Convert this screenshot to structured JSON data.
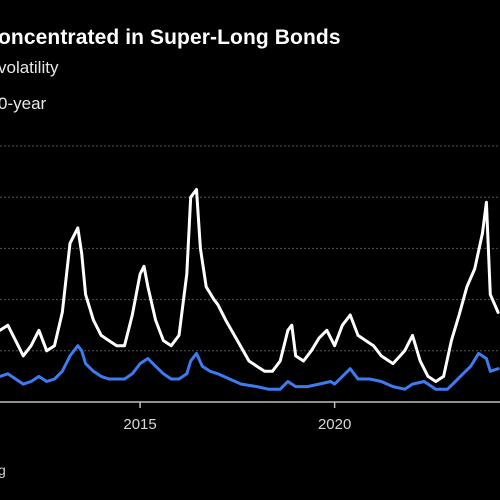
{
  "title": "oncentrated in Super-Long Bonds",
  "subtitle": "volatility",
  "legend_text": "0-year",
  "source": "g",
  "colors": {
    "series_white": "#ffffff",
    "series_blue": "#3d7bf0",
    "grid": "#555555",
    "axis": "#bfbfbf"
  },
  "chart_data": {
    "type": "line",
    "xlim": [
      2011.4,
      2024.25
    ],
    "ylim": [
      0,
      100
    ],
    "x_ticks": [
      2015,
      2020
    ],
    "x_tick_labels": [
      "2015",
      "2020"
    ],
    "grid": true,
    "series": [
      {
        "color": "#ffffff",
        "x": [
          2011.4,
          2011.6,
          2011.8,
          2012.0,
          2012.2,
          2012.4,
          2012.6,
          2012.8,
          2013.0,
          2013.2,
          2013.4,
          2013.5,
          2013.6,
          2013.8,
          2014.0,
          2014.2,
          2014.4,
          2014.6,
          2014.8,
          2015.0,
          2015.1,
          2015.2,
          2015.4,
          2015.6,
          2015.8,
          2016.0,
          2016.2,
          2016.3,
          2016.45,
          2016.55,
          2016.7,
          2016.9,
          2017.0,
          2017.2,
          2017.5,
          2017.8,
          2018.0,
          2018.2,
          2018.4,
          2018.6,
          2018.8,
          2018.9,
          2019.0,
          2019.2,
          2019.4,
          2019.6,
          2019.8,
          2020.0,
          2020.2,
          2020.4,
          2020.6,
          2020.8,
          2021.0,
          2021.2,
          2021.5,
          2021.8,
          2022.0,
          2022.2,
          2022.4,
          2022.6,
          2022.8,
          2023.0,
          2023.2,
          2023.4,
          2023.6,
          2023.8,
          2023.9,
          2024.0,
          2024.2
        ],
        "y": [
          28,
          30,
          24,
          18,
          22,
          28,
          20,
          22,
          35,
          62,
          68,
          58,
          42,
          32,
          26,
          24,
          22,
          22,
          34,
          50,
          53,
          45,
          32,
          24,
          22,
          26,
          50,
          80,
          83,
          60,
          45,
          40,
          38,
          32,
          24,
          16,
          14,
          12,
          12,
          16,
          28,
          30,
          18,
          16,
          20,
          25,
          28,
          22,
          30,
          34,
          26,
          24,
          22,
          18,
          15,
          20,
          26,
          16,
          10,
          8,
          10,
          24,
          34,
          45,
          52,
          66,
          78,
          42,
          35
        ]
      },
      {
        "color": "#3d7bf0",
        "x": [
          2011.4,
          2011.6,
          2011.8,
          2012.0,
          2012.2,
          2012.4,
          2012.6,
          2012.8,
          2013.0,
          2013.2,
          2013.4,
          2013.5,
          2013.6,
          2013.8,
          2014.0,
          2014.2,
          2014.4,
          2014.6,
          2014.8,
          2015.0,
          2015.2,
          2015.4,
          2015.6,
          2015.8,
          2016.0,
          2016.2,
          2016.3,
          2016.45,
          2016.6,
          2016.8,
          2017.0,
          2017.3,
          2017.6,
          2018.0,
          2018.3,
          2018.6,
          2018.8,
          2019.0,
          2019.3,
          2019.6,
          2019.9,
          2020.0,
          2020.2,
          2020.4,
          2020.6,
          2020.9,
          2021.2,
          2021.5,
          2021.8,
          2022.0,
          2022.3,
          2022.6,
          2022.9,
          2023.1,
          2023.3,
          2023.5,
          2023.7,
          2023.9,
          2024.0,
          2024.2
        ],
        "y": [
          10,
          11,
          9,
          7,
          8,
          10,
          8,
          9,
          12,
          18,
          22,
          20,
          15,
          12,
          10,
          9,
          9,
          9,
          11,
          15,
          17,
          14,
          11,
          9,
          9,
          11,
          16,
          19,
          14,
          12,
          11,
          9,
          7,
          6,
          5,
          5,
          8,
          6,
          6,
          7,
          8,
          7,
          10,
          13,
          9,
          9,
          8,
          6,
          5,
          7,
          8,
          5,
          5,
          8,
          11,
          14,
          19,
          17,
          12,
          13
        ]
      }
    ]
  }
}
